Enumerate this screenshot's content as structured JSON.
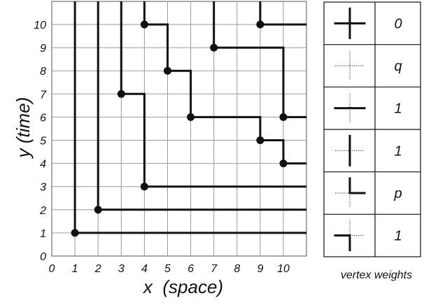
{
  "axes": {
    "xlabel": "x  (space)",
    "ylabel": "y (time)",
    "xticks": [
      "0",
      "1",
      "2",
      "3",
      "4",
      "5",
      "6",
      "7",
      "8",
      "9",
      "10"
    ],
    "yticks": [
      "0",
      "1",
      "2",
      "3",
      "4",
      "5",
      "6",
      "7",
      "8",
      "9",
      "10"
    ],
    "xlim": [
      0,
      11
    ],
    "ylim": [
      0,
      11
    ]
  },
  "vertices": [
    {
      "x": 1,
      "y": 1
    },
    {
      "x": 2,
      "y": 2
    },
    {
      "x": 4,
      "y": 3
    },
    {
      "x": 3,
      "y": 7
    },
    {
      "x": 4,
      "y": 10
    },
    {
      "x": 5,
      "y": 8
    },
    {
      "x": 6,
      "y": 6
    },
    {
      "x": 7,
      "y": 9
    },
    {
      "x": 9,
      "y": 10
    },
    {
      "x": 9,
      "y": 5
    },
    {
      "x": 10,
      "y": 6
    },
    {
      "x": 10,
      "y": 4
    }
  ],
  "paths": [
    [
      [
        1,
        11
      ],
      [
        1,
        1
      ],
      [
        11,
        1
      ]
    ],
    [
      [
        2,
        11
      ],
      [
        2,
        2
      ],
      [
        11,
        2
      ]
    ],
    [
      [
        3,
        11
      ],
      [
        3,
        7
      ],
      [
        4,
        7
      ],
      [
        4,
        3
      ],
      [
        11,
        3
      ]
    ],
    [
      [
        4,
        11
      ],
      [
        4,
        10
      ],
      [
        5,
        10
      ],
      [
        5,
        8
      ],
      [
        6,
        8
      ],
      [
        6,
        6
      ],
      [
        9,
        6
      ],
      [
        9,
        5
      ],
      [
        10,
        5
      ],
      [
        10,
        4
      ],
      [
        11,
        4
      ]
    ],
    [
      [
        7,
        11
      ],
      [
        7,
        9
      ],
      [
        10,
        9
      ],
      [
        10,
        6
      ],
      [
        11,
        6
      ]
    ],
    [
      [
        9,
        11
      ],
      [
        9,
        10
      ],
      [
        11,
        10
      ]
    ]
  ],
  "legend": {
    "caption": "vertex weights",
    "weights": [
      "0",
      "q",
      "1",
      "1",
      "p",
      "1"
    ]
  }
}
